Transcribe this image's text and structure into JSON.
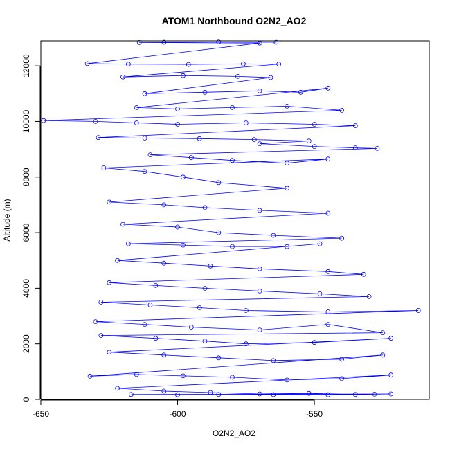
{
  "chart_data": {
    "type": "scatter",
    "title": "ATOM1 Northbound O2N2_AO2",
    "xlabel": "O2N2_AO2",
    "ylabel": "Altitude (m)",
    "xlim": [
      -650,
      -508
    ],
    "ylim": [
      0,
      12900
    ],
    "xticks": [
      -650,
      -600,
      -550
    ],
    "yticks": [
      0,
      2000,
      4000,
      6000,
      8000,
      10000,
      12000
    ],
    "grid": false,
    "legend": "none",
    "connected": true,
    "colors": {
      "series": "#0000ff",
      "axis": "#000000"
    },
    "series": [
      {
        "description": "altitude profile samples",
        "points": [
          [
            -564,
            12850
          ],
          [
            -585,
            12860
          ],
          [
            -605,
            12850
          ],
          [
            -614,
            12840
          ],
          [
            -570,
            12820
          ],
          [
            -633,
            12080
          ],
          [
            -618,
            12060
          ],
          [
            -596,
            12050
          ],
          [
            -576,
            12070
          ],
          [
            -563,
            12060
          ],
          [
            -620,
            11600
          ],
          [
            -598,
            11650
          ],
          [
            -578,
            11620
          ],
          [
            -566,
            11580
          ],
          [
            -612,
            11000
          ],
          [
            -590,
            11050
          ],
          [
            -570,
            11100
          ],
          [
            -555,
            11050
          ],
          [
            -545,
            11200
          ],
          [
            -615,
            10500
          ],
          [
            -600,
            10450
          ],
          [
            -580,
            10500
          ],
          [
            -560,
            10550
          ],
          [
            -540,
            10400
          ],
          [
            -649,
            10030
          ],
          [
            -630,
            10000
          ],
          [
            -615,
            9950
          ],
          [
            -600,
            9900
          ],
          [
            -575,
            9950
          ],
          [
            -550,
            9900
          ],
          [
            -535,
            9850
          ],
          [
            -629,
            9420
          ],
          [
            -612,
            9400
          ],
          [
            -592,
            9380
          ],
          [
            -572,
            9350
          ],
          [
            -552,
            9300
          ],
          [
            -570,
            9200
          ],
          [
            -550,
            9100
          ],
          [
            -535,
            9050
          ],
          [
            -527,
            9030
          ],
          [
            -610,
            8800
          ],
          [
            -595,
            8700
          ],
          [
            -580,
            8600
          ],
          [
            -560,
            8500
          ],
          [
            -545,
            8650
          ],
          [
            -627,
            8330
          ],
          [
            -612,
            8200
          ],
          [
            -598,
            8000
          ],
          [
            -585,
            7800
          ],
          [
            -560,
            7600
          ],
          [
            -625,
            7100
          ],
          [
            -605,
            7000
          ],
          [
            -590,
            6900
          ],
          [
            -570,
            6800
          ],
          [
            -545,
            6700
          ],
          [
            -620,
            6300
          ],
          [
            -600,
            6200
          ],
          [
            -585,
            6000
          ],
          [
            -565,
            5900
          ],
          [
            -540,
            5800
          ],
          [
            -618,
            5600
          ],
          [
            -598,
            5550
          ],
          [
            -580,
            5500
          ],
          [
            -560,
            5500
          ],
          [
            -548,
            5600
          ],
          [
            -622,
            5000
          ],
          [
            -605,
            4900
          ],
          [
            -588,
            4800
          ],
          [
            -570,
            4700
          ],
          [
            -545,
            4600
          ],
          [
            -532,
            4500
          ],
          [
            -625,
            4200
          ],
          [
            -608,
            4100
          ],
          [
            -590,
            4000
          ],
          [
            -570,
            3900
          ],
          [
            -548,
            3800
          ],
          [
            -530,
            3700
          ],
          [
            -628,
            3500
          ],
          [
            -610,
            3400
          ],
          [
            -592,
            3300
          ],
          [
            -575,
            3200
          ],
          [
            -545,
            3150
          ],
          [
            -512,
            3200
          ],
          [
            -630,
            2800
          ],
          [
            -612,
            2700
          ],
          [
            -595,
            2600
          ],
          [
            -570,
            2500
          ],
          [
            -545,
            2700
          ],
          [
            -525,
            2400
          ],
          [
            -628,
            2300
          ],
          [
            -608,
            2200
          ],
          [
            -590,
            2100
          ],
          [
            -575,
            2000
          ],
          [
            -550,
            2050
          ],
          [
            -522,
            2200
          ],
          [
            -625,
            1700
          ],
          [
            -605,
            1600
          ],
          [
            -585,
            1500
          ],
          [
            -565,
            1400
          ],
          [
            -540,
            1450
          ],
          [
            -525,
            1600
          ],
          [
            -632,
            840
          ],
          [
            -615,
            900
          ],
          [
            -598,
            850
          ],
          [
            -580,
            800
          ],
          [
            -560,
            700
          ],
          [
            -540,
            750
          ],
          [
            -522,
            880
          ],
          [
            -622,
            400
          ],
          [
            -605,
            300
          ],
          [
            -588,
            250
          ],
          [
            -570,
            200
          ],
          [
            -552,
            220
          ],
          [
            -535,
            180
          ],
          [
            -522,
            200
          ],
          [
            -617,
            180
          ],
          [
            -600,
            170
          ],
          [
            -585,
            180
          ],
          [
            -565,
            175
          ],
          [
            -545,
            170
          ],
          [
            -528,
            190
          ]
        ]
      }
    ]
  }
}
